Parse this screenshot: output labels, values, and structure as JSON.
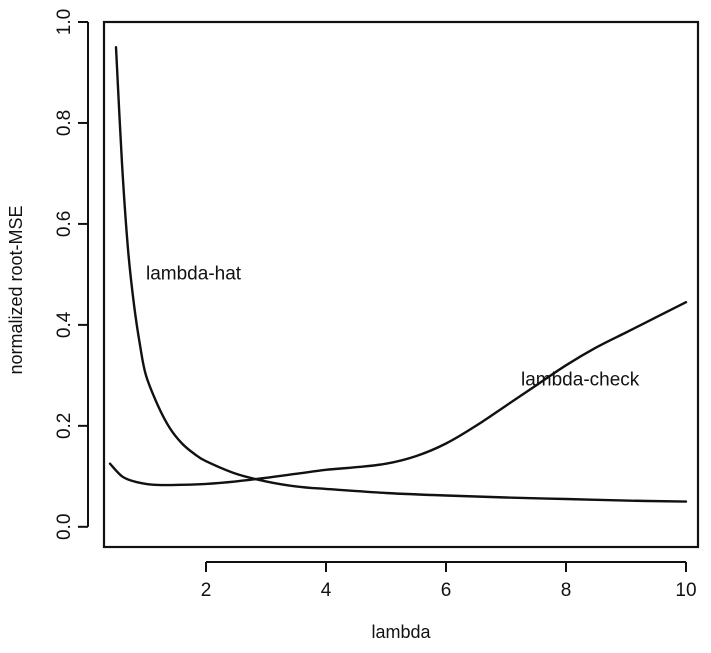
{
  "chart_data": {
    "type": "line",
    "title": "",
    "xlabel": "lambda",
    "ylabel": "normalized root-MSE",
    "xlim": [
      0.3,
      10.2
    ],
    "ylim": [
      -0.04,
      1.0
    ],
    "x_ticks": [
      2,
      4,
      6,
      8,
      10
    ],
    "y_ticks": [
      0.0,
      0.2,
      0.4,
      0.6,
      0.8,
      1.0
    ],
    "x_tick_labels": [
      "2",
      "4",
      "6",
      "8",
      "10"
    ],
    "y_tick_labels": [
      "0.0",
      "0.2",
      "0.4",
      "0.6",
      "0.8",
      "1.0"
    ],
    "grid": false,
    "series": [
      {
        "name": "lambda-hat",
        "x": [
          0.5,
          0.6,
          0.7,
          0.8,
          0.9,
          1.0,
          1.2,
          1.4,
          1.6,
          1.8,
          2.0,
          2.5,
          3.0,
          3.5,
          4.0,
          5.0,
          6.0,
          7.0,
          8.0,
          9.0,
          10.0
        ],
        "y": [
          0.95,
          0.72,
          0.55,
          0.44,
          0.36,
          0.3,
          0.24,
          0.195,
          0.165,
          0.145,
          0.13,
          0.105,
          0.09,
          0.08,
          0.075,
          0.067,
          0.062,
          0.058,
          0.055,
          0.052,
          0.05
        ]
      },
      {
        "name": "lambda-check",
        "x": [
          0.4,
          0.6,
          0.8,
          1.0,
          1.2,
          1.5,
          2.0,
          2.5,
          3.0,
          3.5,
          4.0,
          4.5,
          5.0,
          5.5,
          6.0,
          6.5,
          7.0,
          7.5,
          8.0,
          8.5,
          9.0,
          9.5,
          10.0
        ],
        "y": [
          0.125,
          0.1,
          0.09,
          0.085,
          0.083,
          0.083,
          0.085,
          0.09,
          0.097,
          0.105,
          0.113,
          0.118,
          0.125,
          0.14,
          0.165,
          0.2,
          0.24,
          0.28,
          0.32,
          0.355,
          0.385,
          0.415,
          0.445
        ]
      }
    ],
    "annotations": [
      {
        "text": "lambda-hat",
        "x": 1.0,
        "y": 0.49
      },
      {
        "text": "lambda-check",
        "x": 7.25,
        "y": 0.28
      }
    ]
  }
}
